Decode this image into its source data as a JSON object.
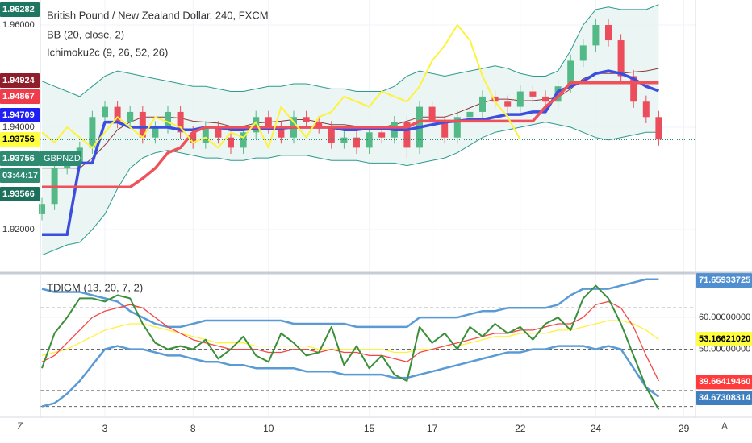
{
  "chart_data": [
    {
      "type": "candlestick",
      "title": "British Pound / New Zealand Dollar, 240, FXCM",
      "indicators": [
        "BB (20, close, 2)",
        "Ichimoku2c (9, 26, 52, 26)"
      ],
      "symbol": "GBPNZD",
      "countdown": "03:44:17",
      "up_color": "#53b987",
      "down_color": "#eb4d5c",
      "open": [
        1.923,
        1.925,
        1.932,
        1.933,
        1.936,
        1.942,
        1.944,
        1.941,
        1.943,
        1.938,
        1.94,
        1.943,
        1.939,
        1.937,
        1.94,
        1.938,
        1.936,
        1.939,
        1.942,
        1.94,
        1.938,
        1.942,
        1.941,
        1.94,
        1.937,
        1.938,
        1.936,
        1.939,
        1.938,
        1.941,
        1.936,
        1.944,
        1.941,
        1.938,
        1.942,
        1.943,
        1.946,
        1.945,
        1.944,
        1.947,
        1.946,
        1.945,
        1.948,
        1.953,
        1.956,
        1.96,
        1.957,
        1.95,
        1.945,
        1.942,
        null,
        null
      ],
      "high": [
        1.9262,
        1.9332,
        1.9342,
        1.9372,
        1.9432,
        1.9452,
        1.9452,
        1.9442,
        1.9442,
        1.9412,
        1.9442,
        1.9442,
        1.9402,
        1.9412,
        1.9412,
        1.9392,
        1.9402,
        1.9432,
        1.9432,
        1.9412,
        1.9432,
        1.9432,
        1.9422,
        1.9412,
        1.9392,
        1.9392,
        1.9402,
        1.9402,
        1.9422,
        1.9422,
        1.9452,
        1.9452,
        1.9422,
        1.9432,
        1.9442,
        1.9472,
        1.9472,
        1.9462,
        1.9482,
        1.9482,
        1.9472,
        1.9492,
        1.9542,
        1.9572,
        1.9612,
        1.9612,
        1.9582,
        1.9512,
        1.9462,
        1.9432,
        null,
        null
      ],
      "low": [
        1.9218,
        1.9238,
        1.9308,
        1.9318,
        1.9348,
        1.9408,
        1.9398,
        1.9398,
        1.9368,
        1.9368,
        1.9388,
        1.9378,
        1.9358,
        1.9358,
        1.9368,
        1.9348,
        1.9348,
        1.9378,
        1.9388,
        1.9368,
        1.9368,
        1.9398,
        1.9388,
        1.9358,
        1.9358,
        1.9348,
        1.9348,
        1.9368,
        1.9368,
        1.934,
        1.9348,
        1.9398,
        1.9368,
        1.9368,
        1.9408,
        1.9418,
        1.9438,
        1.9428,
        1.9428,
        1.9448,
        1.9438,
        1.9438,
        1.9468,
        1.9518,
        1.9548,
        1.9558,
        1.9488,
        1.9438,
        1.9408,
        1.9364,
        null,
        null
      ],
      "close": [
        1.925,
        1.932,
        1.933,
        1.936,
        1.942,
        1.944,
        1.941,
        1.943,
        1.938,
        1.94,
        1.943,
        1.939,
        1.937,
        1.94,
        1.938,
        1.936,
        1.939,
        1.942,
        1.94,
        1.938,
        1.942,
        1.941,
        1.94,
        1.937,
        1.938,
        1.936,
        1.939,
        1.938,
        1.941,
        1.936,
        1.944,
        1.941,
        1.938,
        1.942,
        1.943,
        1.946,
        1.945,
        1.944,
        1.947,
        1.946,
        1.945,
        1.948,
        1.953,
        1.956,
        1.96,
        1.957,
        1.95,
        1.945,
        1.942,
        1.9376,
        null,
        null
      ],
      "series": [
        {
          "color": "#2c9b8d",
          "values": [
            1.949,
            1.948,
            1.947,
            1.946,
            1.948,
            1.95,
            1.951,
            1.9505,
            1.95,
            1.9495,
            1.949,
            1.9485,
            1.948,
            1.948,
            1.9475,
            1.947,
            1.947,
            1.9475,
            1.948,
            1.948,
            1.9485,
            1.9485,
            1.948,
            1.9475,
            1.9475,
            1.947,
            1.947,
            1.947,
            1.948,
            1.95,
            1.951,
            1.9505,
            1.95,
            1.9505,
            1.951,
            1.9515,
            1.952,
            1.9515,
            1.9505,
            1.95,
            1.95,
            1.951,
            1.955,
            1.96,
            1.963,
            1.9635,
            1.963,
            1.963,
            1.963,
            1.964,
            null,
            null
          ]
        },
        {
          "color": "#8b3a3a",
          "values": [
            1.932,
            1.932,
            1.932,
            1.932,
            1.934,
            1.9365,
            1.9395,
            1.941,
            1.942,
            1.942,
            1.942,
            1.9418,
            1.9412,
            1.941,
            1.9408,
            1.9402,
            1.9402,
            1.9408,
            1.941,
            1.9412,
            1.9415,
            1.9415,
            1.941,
            1.9405,
            1.9405,
            1.9402,
            1.94,
            1.94,
            1.9405,
            1.9412,
            1.942,
            1.942,
            1.942,
            1.9428,
            1.9438,
            1.9448,
            1.9455,
            1.9455,
            1.9452,
            1.9452,
            1.9455,
            1.9458,
            1.9475,
            1.9495,
            1.9505,
            1.9505,
            1.9505,
            1.9508,
            1.951,
            1.9515,
            null,
            null
          ]
        },
        {
          "color": "#2c9b8d",
          "values": [
            1.915,
            1.916,
            1.917,
            1.9175,
            1.92,
            1.923,
            1.928,
            1.932,
            1.934,
            1.935,
            1.9355,
            1.935,
            1.9345,
            1.934,
            1.934,
            1.9335,
            1.9335,
            1.934,
            1.934,
            1.9345,
            1.9345,
            1.9345,
            1.934,
            1.9335,
            1.9335,
            1.9335,
            1.933,
            1.933,
            1.933,
            1.9325,
            1.933,
            1.9335,
            1.934,
            1.935,
            1.9365,
            1.938,
            1.939,
            1.9395,
            1.94,
            1.9405,
            1.941,
            1.9405,
            1.94,
            1.939,
            1.938,
            1.9375,
            1.938,
            1.9385,
            1.939,
            1.939,
            null,
            null
          ]
        },
        {
          "color": "#3b4ee0",
          "values": [
            1.919,
            1.919,
            1.919,
            1.933,
            1.933,
            1.941,
            1.941,
            1.94,
            1.94,
            1.94,
            1.94,
            1.9395,
            1.9395,
            1.94,
            1.94,
            1.9395,
            1.9395,
            1.9398,
            1.9398,
            1.9398,
            1.94,
            1.94,
            1.94,
            1.94,
            1.9395,
            1.9395,
            1.9398,
            1.9398,
            1.9395,
            1.9395,
            1.94,
            1.9405,
            1.941,
            1.9412,
            1.9415,
            1.9415,
            1.942,
            1.9425,
            1.9425,
            1.943,
            1.943,
            1.947,
            1.948,
            1.949,
            1.9505,
            1.951,
            1.9505,
            1.9495,
            1.948,
            1.9471,
            null,
            null
          ]
        },
        {
          "color": "#f0505a",
          "values": [
            1.9283,
            1.9283,
            1.9283,
            1.9283,
            1.9283,
            1.9283,
            1.9283,
            1.9283,
            1.93,
            1.932,
            1.935,
            1.936,
            1.939,
            1.94,
            1.94,
            1.94,
            1.94,
            1.94,
            1.94,
            1.94,
            1.94,
            1.94,
            1.94,
            1.94,
            1.94,
            1.94,
            1.94,
            1.94,
            1.94,
            1.94,
            1.9412,
            1.9412,
            1.9412,
            1.9412,
            1.9412,
            1.9412,
            1.9412,
            1.9412,
            1.9412,
            1.9412,
            1.944,
            1.946,
            1.9487,
            1.9487,
            1.9487,
            1.9487,
            1.9487,
            1.9487,
            1.9487,
            1.9487,
            null,
            null
          ]
        },
        {
          "color": "#fff23a",
          "values": [
            1.939,
            1.937,
            1.94,
            1.938,
            1.936,
            1.939,
            1.942,
            1.94,
            1.938,
            1.942,
            1.941,
            1.94,
            1.937,
            1.938,
            1.936,
            1.939,
            1.938,
            1.941,
            1.936,
            1.944,
            1.941,
            1.938,
            1.942,
            1.943,
            1.946,
            1.945,
            1.944,
            1.947,
            1.946,
            1.945,
            1.948,
            1.953,
            1.956,
            1.96,
            1.957,
            1.95,
            1.945,
            1.942,
            1.9376,
            null,
            null,
            null,
            null,
            null,
            null,
            null,
            null,
            null,
            null,
            null,
            null,
            null
          ]
        }
      ],
      "ylim": [
        1.91165,
        1.96488
      ],
      "yticks": [
        {
          "value": 1.96,
          "label": "1.96000"
        },
        {
          "value": 1.94,
          "label": "1.94000"
        },
        {
          "value": 1.92,
          "label": "1.92000"
        }
      ],
      "price_labels": [
        {
          "value": 1.96282,
          "color": "#1e7561",
          "text_color": "#ffffff"
        },
        {
          "value": 1.94924,
          "color": "#8e1f2a",
          "text_color": "#ffffff"
        },
        {
          "value": 1.94867,
          "color": "#ef3b4a",
          "text_color": "#ffffff"
        },
        {
          "value": 1.94709,
          "color": "#1f1ff5",
          "text_color": "#ffffff"
        },
        {
          "value": 1.93756,
          "color": "#ffff40",
          "text_color": "#000000"
        },
        {
          "value": 1.93756,
          "color": "#2e8b72",
          "text_color": "#ffffff"
        },
        {
          "value": 1.93566,
          "color": "#1b6f5b",
          "text_color": "#ffffff"
        }
      ]
    },
    {
      "type": "line",
      "title": "TDIGM (13, 20, 7, 2)",
      "categories": [
        null,
        null,
        null,
        null,
        null,
        "3",
        null,
        null,
        null,
        null,
        null,
        null,
        "8",
        null,
        null,
        null,
        null,
        null,
        "10",
        null,
        null,
        null,
        null,
        null,
        null,
        null,
        "15",
        null,
        null,
        null,
        null,
        "17",
        null,
        null,
        null,
        null,
        null,
        null,
        "22",
        null,
        null,
        null,
        null,
        null,
        "24",
        null,
        null,
        null,
        null,
        null,
        null,
        "29"
      ],
      "series": [
        {
          "color": "#5b9bd5",
          "values": [
            69,
            68,
            68,
            68,
            67,
            66,
            65,
            62,
            60,
            58,
            57,
            57,
            58,
            59,
            59,
            59,
            59,
            59,
            59,
            59,
            58,
            58,
            58,
            58,
            58,
            57,
            57,
            57,
            57,
            57,
            60,
            60,
            60,
            60,
            61,
            62,
            62,
            63,
            63,
            63,
            63,
            64,
            67,
            69,
            69,
            69,
            70,
            71,
            72,
            72,
            null,
            null
          ]
        },
        {
          "color": "#5b9bd5",
          "values": [
            32,
            33,
            36,
            40,
            45,
            50,
            51,
            50,
            50,
            49,
            48,
            48,
            47,
            46,
            46,
            45,
            45,
            44,
            44,
            44,
            44,
            43,
            43,
            43,
            42,
            42,
            42,
            42,
            41,
            41,
            42,
            43,
            44,
            45,
            46,
            47,
            48,
            49,
            49,
            50,
            50,
            51,
            51,
            51,
            50,
            51,
            50,
            44,
            38,
            35,
            null,
            null
          ]
        },
        {
          "color": "#fff23a",
          "values": [
            48,
            49,
            50,
            52,
            54,
            56,
            57,
            58,
            58,
            57,
            56,
            55,
            54,
            53,
            52,
            52,
            52,
            51,
            51,
            51,
            51,
            51,
            50,
            50,
            50,
            50,
            50,
            50,
            49,
            49,
            50,
            50,
            51,
            51,
            52,
            53,
            54,
            54,
            55,
            55,
            55,
            56,
            56,
            57,
            58,
            59,
            59,
            58,
            56,
            53,
            null,
            null
          ]
        },
        {
          "color": "#f44646",
          "values": [
            46,
            48,
            52,
            56,
            60,
            62,
            63,
            64,
            63,
            60,
            57,
            55,
            53,
            52,
            51,
            50,
            50,
            50,
            49,
            49,
            50,
            50,
            49,
            50,
            49,
            49,
            48,
            48,
            47,
            46,
            49,
            50,
            51,
            52,
            53,
            54,
            55,
            55,
            56,
            56,
            57,
            58,
            58,
            60,
            64,
            65,
            63,
            57,
            48,
            40,
            null,
            null
          ]
        },
        {
          "color": "#3a8f3a",
          "values": [
            44,
            55,
            60,
            66,
            66,
            65,
            67,
            66,
            58,
            52,
            50,
            51,
            50,
            53,
            47,
            50,
            54,
            48,
            46,
            55,
            52,
            48,
            49,
            57,
            45,
            51,
            44,
            48,
            42,
            40,
            57,
            52,
            55,
            50,
            57,
            54,
            58,
            55,
            57,
            53,
            58,
            60,
            56,
            66,
            70,
            66,
            58,
            48,
            38,
            31,
            null,
            null
          ]
        }
      ],
      "ylim": [
        28.6,
        73.2
      ],
      "yticks": [
        {
          "value": 60,
          "label": "60.00000000"
        },
        {
          "value": 50,
          "label": "50.00000000"
        }
      ],
      "levels": [
        68,
        63,
        50,
        37,
        32
      ],
      "value_labels": [
        {
          "value": 71.65933725,
          "color": "#4f8fd0",
          "text_color": "#ffffff"
        },
        {
          "value": 53.1662102,
          "label": "53.16621020",
          "color": "#ffff40",
          "text_color": "#000000"
        },
        {
          "value": 39.6641946,
          "label": "39.66419460",
          "color": "#ff3b3b",
          "text_color": "#ffffff"
        },
        {
          "value": 34.67308314,
          "color": "#3f7fc0",
          "text_color": "#ffffff"
        }
      ]
    }
  ],
  "controls": {
    "left_button": "Z",
    "right_button": "A"
  }
}
